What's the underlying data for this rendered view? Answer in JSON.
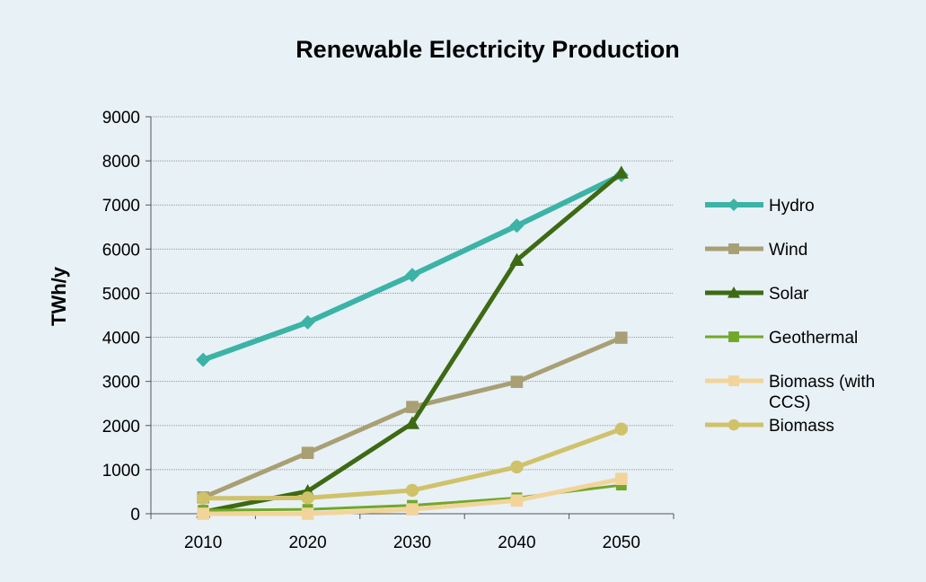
{
  "chart_data": {
    "type": "line",
    "title": "Renewable Electricity Production",
    "xlabel": "",
    "ylabel": "TWh/y",
    "categories": [
      "2010",
      "2020",
      "2030",
      "2040",
      "2050"
    ],
    "ylim": [
      0,
      9000
    ],
    "yticks": [
      "0",
      "1000",
      "2000",
      "3000",
      "4000",
      "5000",
      "6000",
      "7000",
      "8000",
      "9000"
    ],
    "grid": "horizontal",
    "legend_position": "right",
    "series": [
      {
        "name": "Hydro",
        "values": [
          3490,
          4340,
          5410,
          6530,
          7680
        ],
        "color": "#3bb3a6",
        "marker": "diamond",
        "width": 6
      },
      {
        "name": "Wind",
        "values": [
          370,
          1380,
          2420,
          2990,
          3990
        ],
        "color": "#a89f74",
        "marker": "square",
        "width": 5
      },
      {
        "name": "Solar",
        "values": [
          40,
          510,
          2050,
          5750,
          7730
        ],
        "color": "#3d6a12",
        "marker": "triangle",
        "width": 5
      },
      {
        "name": "Geothermal",
        "values": [
          80,
          100,
          190,
          360,
          650
        ],
        "color": "#71a82a",
        "marker": "square",
        "width": 3
      },
      {
        "name": "Biomass (with CCS)",
        "legend_lines": [
          "Biomass (with",
          "CCS)"
        ],
        "values": [
          0,
          0,
          100,
          300,
          790
        ],
        "color": "#f2d49b",
        "marker": "square",
        "width": 5
      },
      {
        "name": "Biomass",
        "values": [
          350,
          360,
          530,
          1060,
          1920
        ],
        "color": "#d0c26a",
        "marker": "circle",
        "width": 5
      }
    ]
  }
}
